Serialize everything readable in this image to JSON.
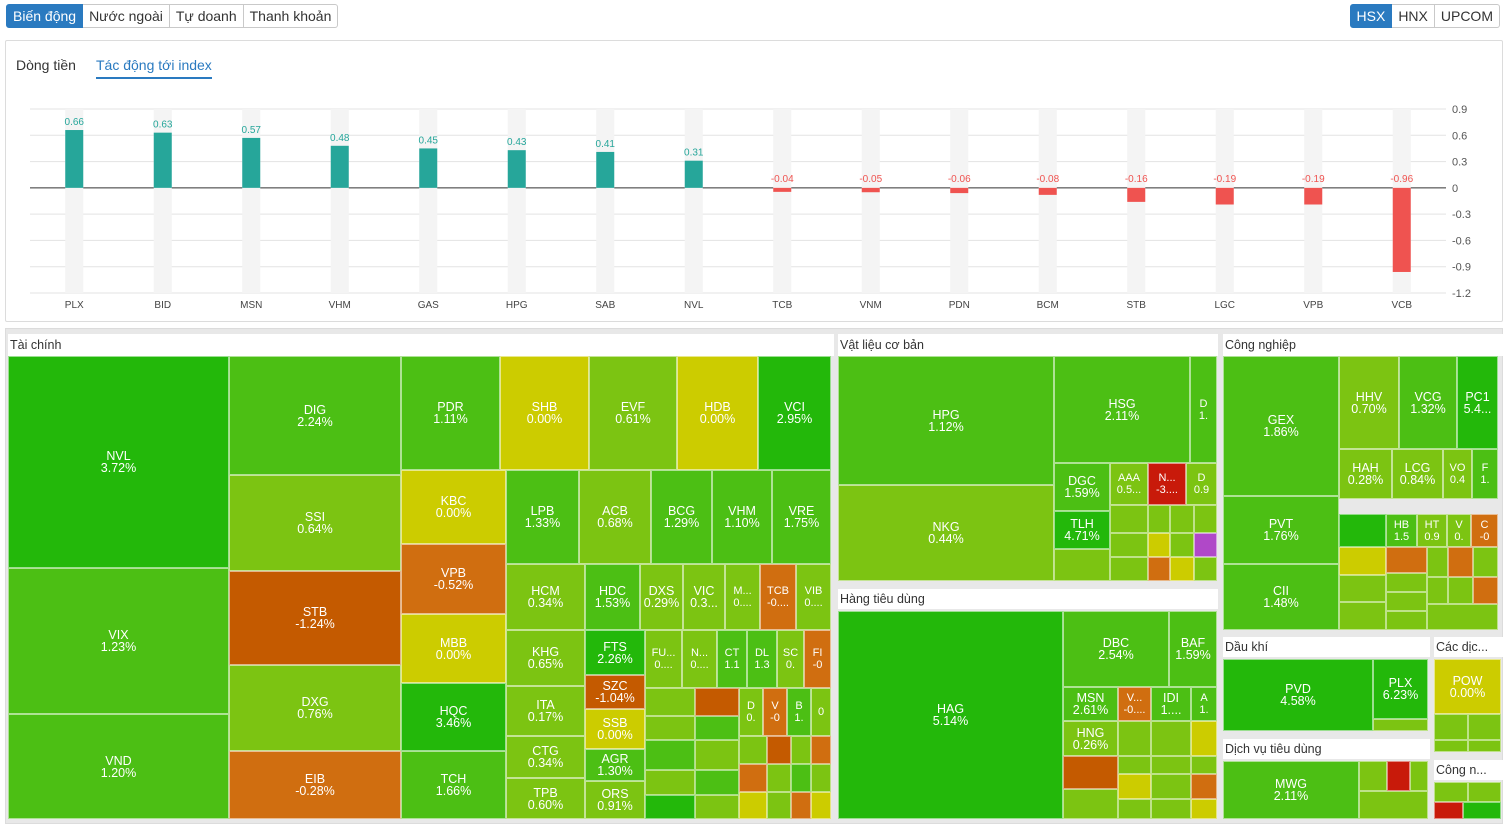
{
  "top_tabs": [
    "Biến động",
    "Nước ngoài",
    "Tự doanh",
    "Thanh khoản"
  ],
  "exchanges": [
    "HSX",
    "HNX",
    "UPCOM"
  ],
  "panel_tabs": [
    "Dòng tiền",
    "Tác động tới index"
  ],
  "colors": {
    "positive": "#26a69a",
    "negative": "#ef5350",
    "accent": "#2a7ac0",
    "purple": "#b048c8",
    "green_strong": "#23b80a",
    "green": "#4cbf14",
    "green_light": "#7cc412",
    "yellow": "#cccc00",
    "orange": "#d06e10",
    "orange_dark": "#c45a00",
    "red": "#c81a0a"
  },
  "chart_data": {
    "type": "bar",
    "categories": [
      "PLX",
      "BID",
      "MSN",
      "VHM",
      "GAS",
      "HPG",
      "SAB",
      "NVL",
      "TCB",
      "VNM",
      "PDN",
      "BCM",
      "STB",
      "LGC",
      "VPB",
      "VCB"
    ],
    "values": [
      0.66,
      0.63,
      0.57,
      0.48,
      0.45,
      0.43,
      0.41,
      0.31,
      -0.04,
      -0.05,
      -0.06,
      -0.08,
      -0.16,
      -0.19,
      -0.19,
      -0.96
    ],
    "value_labels": [
      "0.66",
      "0.63",
      "0.57",
      "0.48",
      "0.45",
      "0.43",
      "0.41",
      "0.31",
      "-0.04",
      "-0.05",
      "-0.06",
      "-0.08",
      "-0.16",
      "-0.19",
      "-0.19",
      "-0.96"
    ],
    "ylim": [
      -1.2,
      0.9
    ],
    "yticks": [
      0.9,
      0.6,
      0.3,
      0,
      -0.3,
      -0.6,
      -0.9,
      -1.2
    ],
    "ytick_labels": [
      "0.9",
      "0.6",
      "0.3",
      "0",
      "-0.3",
      "-0.6",
      "-0.9",
      "-1.2"
    ]
  },
  "sectors": [
    {
      "name": "Tài chính",
      "tiles": [
        {
          "sym": "NVL",
          "chg": "3.72%",
          "c": "green_strong"
        },
        {
          "sym": "VIX",
          "chg": "1.23%",
          "c": "green"
        },
        {
          "sym": "VND",
          "chg": "1.20%",
          "c": "green"
        },
        {
          "sym": "DIG",
          "chg": "2.24%",
          "c": "green"
        },
        {
          "sym": "SSI",
          "chg": "0.64%",
          "c": "green_light"
        },
        {
          "sym": "STB",
          "chg": "-1.24%",
          "c": "orange_dark"
        },
        {
          "sym": "DXG",
          "chg": "0.76%",
          "c": "green_light"
        },
        {
          "sym": "EIB",
          "chg": "-0.28%",
          "c": "orange"
        },
        {
          "sym": "PDR",
          "chg": "1.11%",
          "c": "green"
        },
        {
          "sym": "SHB",
          "chg": "0.00%",
          "c": "yellow"
        },
        {
          "sym": "EVF",
          "chg": "0.61%",
          "c": "green_light"
        },
        {
          "sym": "HDB",
          "chg": "0.00%",
          "c": "yellow"
        },
        {
          "sym": "VCI",
          "chg": "2.95%",
          "c": "green_strong"
        },
        {
          "sym": "KBC",
          "chg": "0.00%",
          "c": "yellow"
        },
        {
          "sym": "VPB",
          "chg": "-0.52%",
          "c": "orange"
        },
        {
          "sym": "MBB",
          "chg": "0.00%",
          "c": "yellow"
        },
        {
          "sym": "HQC",
          "chg": "3.46%",
          "c": "green_strong"
        },
        {
          "sym": "TCH",
          "chg": "1.66%",
          "c": "green"
        },
        {
          "sym": "LPB",
          "chg": "1.33%",
          "c": "green"
        },
        {
          "sym": "ACB",
          "chg": "0.68%",
          "c": "green_light"
        },
        {
          "sym": "BCG",
          "chg": "1.29%",
          "c": "green"
        },
        {
          "sym": "VHM",
          "chg": "1.10%",
          "c": "green"
        },
        {
          "sym": "VRE",
          "chg": "1.75%",
          "c": "green"
        },
        {
          "sym": "HCM",
          "chg": "0.34%",
          "c": "green_light"
        },
        {
          "sym": "HDC",
          "chg": "1.53%",
          "c": "green"
        },
        {
          "sym": "DXS",
          "chg": "0.29%",
          "c": "green_light"
        },
        {
          "sym": "VIC",
          "chg": "0.3...",
          "c": "green_light"
        },
        {
          "sym": "M...",
          "chg": "0....",
          "c": "green_light"
        },
        {
          "sym": "TCB",
          "chg": "-0....",
          "c": "orange"
        },
        {
          "sym": "VIB",
          "chg": "0....",
          "c": "green_light"
        },
        {
          "sym": "KHG",
          "chg": "0.65%",
          "c": "green_light"
        },
        {
          "sym": "FTS",
          "chg": "2.26%",
          "c": "green_strong"
        },
        {
          "sym": "SZC",
          "chg": "-1.04%",
          "c": "orange_dark"
        },
        {
          "sym": "SSB",
          "chg": "0.00%",
          "c": "yellow"
        },
        {
          "sym": "FU...",
          "chg": "0....",
          "c": "green_light"
        },
        {
          "sym": "N...",
          "chg": "0....",
          "c": "green_light"
        },
        {
          "sym": "CT",
          "chg": "1.1",
          "c": "green"
        },
        {
          "sym": "DL",
          "chg": "1.3",
          "c": "green"
        },
        {
          "sym": "SC",
          "chg": "0.",
          "c": "green_light"
        },
        {
          "sym": "FI",
          "chg": "-0",
          "c": "orange"
        },
        {
          "sym": "ITA",
          "chg": "0.17%",
          "c": "green_light"
        },
        {
          "sym": "CTG",
          "chg": "0.34%",
          "c": "green_light"
        },
        {
          "sym": "AGR",
          "chg": "1.30%",
          "c": "green"
        },
        {
          "sym": "TPB",
          "chg": "0.60%",
          "c": "green_light"
        },
        {
          "sym": "ORS",
          "chg": "0.91%",
          "c": "green_light"
        },
        {
          "sym": "D",
          "chg": "0.",
          "c": "green_light"
        },
        {
          "sym": "V",
          "chg": "-0",
          "c": "orange"
        },
        {
          "sym": "B",
          "chg": "1.",
          "c": "green"
        },
        {
          "sym": "",
          "chg": "0",
          "c": "green_light"
        }
      ]
    },
    {
      "name": "Vật liệu cơ bản",
      "tiles": [
        {
          "sym": "HPG",
          "chg": "1.12%",
          "c": "green"
        },
        {
          "sym": "NKG",
          "chg": "0.44%",
          "c": "green_light"
        },
        {
          "sym": "HSG",
          "chg": "2.11%",
          "c": "green"
        },
        {
          "sym": "D",
          "chg": "1.",
          "c": "green"
        },
        {
          "sym": "DGC",
          "chg": "1.59%",
          "c": "green"
        },
        {
          "sym": "AAA",
          "chg": "0.5...",
          "c": "green_light"
        },
        {
          "sym": "N...",
          "chg": "-3....",
          "c": "red"
        },
        {
          "sym": "D",
          "chg": "0.9",
          "c": "green_light"
        },
        {
          "sym": "TLH",
          "chg": "4.71%",
          "c": "green_strong"
        }
      ]
    },
    {
      "name": "Hàng tiêu dùng",
      "tiles": [
        {
          "sym": "HAG",
          "chg": "5.14%",
          "c": "green_strong"
        },
        {
          "sym": "DBC",
          "chg": "2.54%",
          "c": "green"
        },
        {
          "sym": "BAF",
          "chg": "1.59%",
          "c": "green"
        },
        {
          "sym": "MSN",
          "chg": "2.61%",
          "c": "green"
        },
        {
          "sym": "V...",
          "chg": "-0....",
          "c": "orange"
        },
        {
          "sym": "IDI",
          "chg": "1....",
          "c": "green"
        },
        {
          "sym": "A",
          "chg": "1.",
          "c": "green"
        },
        {
          "sym": "HNG",
          "chg": "0.26%",
          "c": "green_light"
        }
      ]
    },
    {
      "name": "Công nghiệp",
      "tiles": [
        {
          "sym": "GEX",
          "chg": "1.86%",
          "c": "green"
        },
        {
          "sym": "HHV",
          "chg": "0.70%",
          "c": "green_light"
        },
        {
          "sym": "VCG",
          "chg": "1.32%",
          "c": "green"
        },
        {
          "sym": "PC1",
          "chg": "5.4...",
          "c": "green_strong"
        },
        {
          "sym": "HAH",
          "chg": "0.28%",
          "c": "green_light"
        },
        {
          "sym": "LCG",
          "chg": "0.84%",
          "c": "green_light"
        },
        {
          "sym": "VO",
          "chg": "0.4",
          "c": "green_light"
        },
        {
          "sym": "F",
          "chg": "1.",
          "c": "green"
        },
        {
          "sym": "PVT",
          "chg": "1.76%",
          "c": "green"
        },
        {
          "sym": "HB",
          "chg": "1.5",
          "c": "green"
        },
        {
          "sym": "HT",
          "chg": "0.9",
          "c": "green_light"
        },
        {
          "sym": "V",
          "chg": "0.",
          "c": "green_light"
        },
        {
          "sym": "C",
          "chg": "-0",
          "c": "orange"
        },
        {
          "sym": "CII",
          "chg": "1.48%",
          "c": "green"
        }
      ]
    },
    {
      "name": "Dầu khí",
      "tiles": [
        {
          "sym": "PVD",
          "chg": "4.58%",
          "c": "green_strong"
        },
        {
          "sym": "PLX",
          "chg": "6.23%",
          "c": "green_strong"
        }
      ]
    },
    {
      "name": "Các dịc...",
      "tiles": [
        {
          "sym": "POW",
          "chg": "0.00%",
          "c": "yellow"
        }
      ]
    },
    {
      "name": "Dịch vụ tiêu dùng",
      "tiles": [
        {
          "sym": "MWG",
          "chg": "2.11%",
          "c": "green"
        }
      ]
    },
    {
      "name": "Công n...",
      "tiles": []
    }
  ]
}
